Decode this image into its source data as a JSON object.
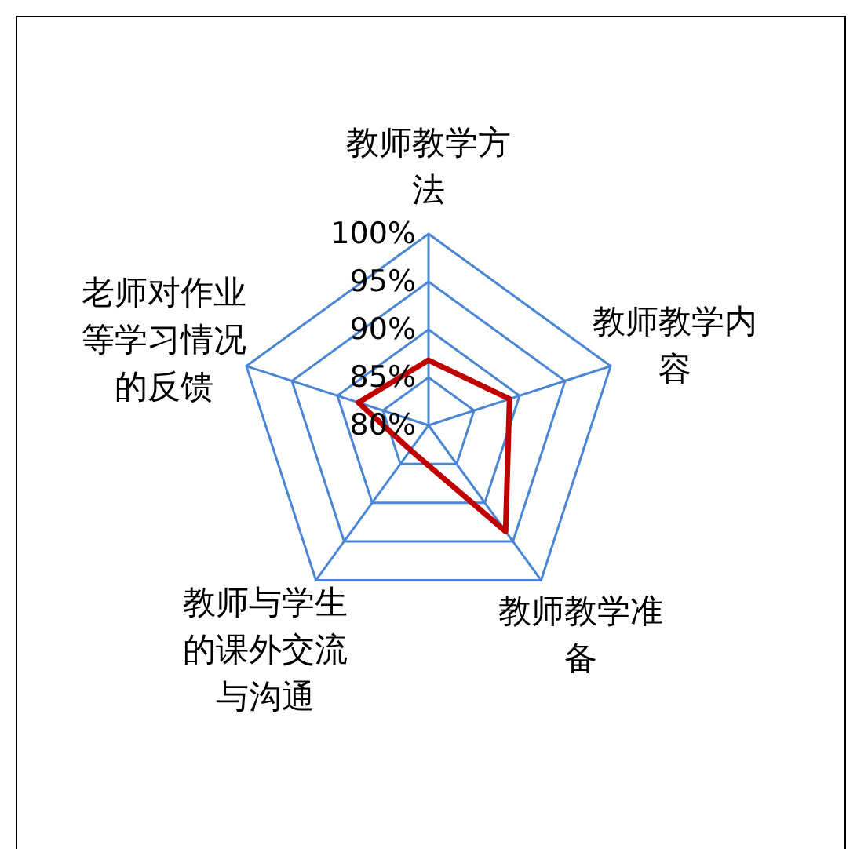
{
  "chart_data": {
    "type": "radar",
    "categories": [
      "教师教学方法",
      "教师教学内容",
      "教师教学准备",
      "教师与学生的课外交流与沟通",
      "老师对作业等学习情况的反馈"
    ],
    "series": [
      {
        "color": "#c00000",
        "values": [
          86.8,
          88.9,
          93.7,
          83.2,
          87.7
        ]
      }
    ],
    "ylim": [
      80,
      100
    ],
    "yticks": [
      {
        "value": 80,
        "label": "80%"
      },
      {
        "value": 85,
        "label": "85%"
      },
      {
        "value": 90,
        "label": "90%"
      },
      {
        "value": 95,
        "label": "95%"
      },
      {
        "value": 100,
        "label": "100%"
      }
    ],
    "grid": true,
    "marker": "none"
  }
}
